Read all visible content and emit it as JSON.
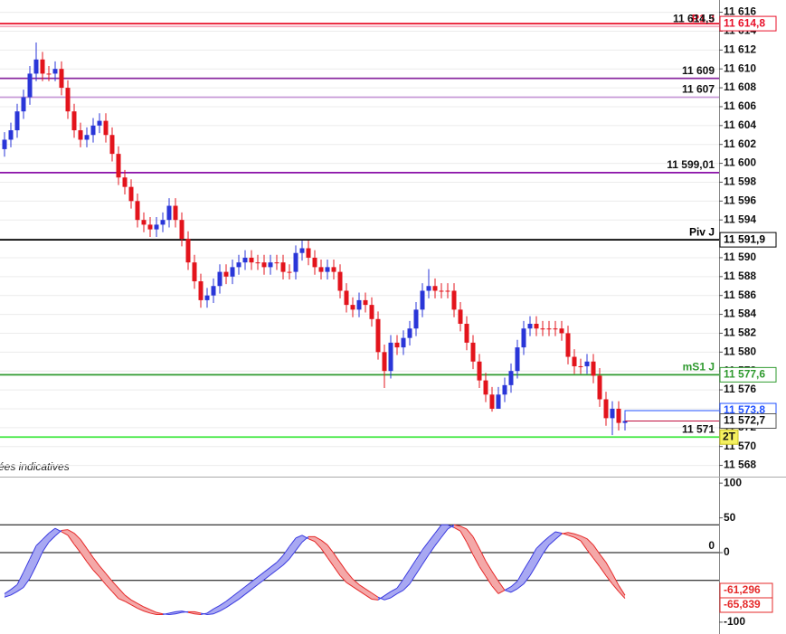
{
  "chart_data": {
    "type": "candlestick",
    "note": "ées indicatives",
    "ylim": [
      11567,
      11617.3
    ],
    "yticks": [
      {
        "value": 11568,
        "label": "11 568"
      },
      {
        "value": 11570,
        "label": "11 570"
      },
      {
        "value": 11572,
        "label": "11 572"
      },
      {
        "value": 11574,
        "label": "11 574"
      },
      {
        "value": 11576,
        "label": "11 576"
      },
      {
        "value": 11578,
        "label": "11 578"
      },
      {
        "value": 11580,
        "label": "11 580"
      },
      {
        "value": 11582,
        "label": "11 582"
      },
      {
        "value": 11584,
        "label": "11 584"
      },
      {
        "value": 11586,
        "label": "11 586"
      },
      {
        "value": 11588,
        "label": "11 588"
      },
      {
        "value": 11590,
        "label": "11 590"
      },
      {
        "value": 11592,
        "label": "11 592"
      },
      {
        "value": 11594,
        "label": "11 594"
      },
      {
        "value": 11596,
        "label": "11 596"
      },
      {
        "value": 11598,
        "label": "11 598"
      },
      {
        "value": 11600,
        "label": "11 600"
      },
      {
        "value": 11602,
        "label": "11 602"
      },
      {
        "value": 11604,
        "label": "11 604"
      },
      {
        "value": 11606,
        "label": "11 606"
      },
      {
        "value": 11608,
        "label": "11 608"
      },
      {
        "value": 11610,
        "label": "11 610"
      },
      {
        "value": 11612,
        "label": "11 612"
      },
      {
        "value": 11614,
        "label": "11 614"
      },
      {
        "value": 11616,
        "label": "11 616"
      }
    ],
    "grid": true,
    "up_color": "#2a36d8",
    "down_color": "#e3141c",
    "open": [
      11601.5,
      11602.5,
      11603.5,
      11605.5,
      11607,
      11609.5,
      11611,
      11609.5,
      11609.5,
      11610,
      11608,
      11605.5,
      11603.5,
      11602.5,
      11603,
      11604,
      11604.5,
      11603,
      11601,
      11598.5,
      11597.5,
      11596,
      11594,
      11593.5,
      11593,
      11593.5,
      11594,
      11595.5,
      11594,
      11592,
      11589.5,
      11587.5,
      11585.5,
      11586,
      11587,
      11588.5,
      11588,
      11589,
      11589.5,
      11590,
      11589.5,
      11589.5,
      11589,
      11589.5,
      11589.5,
      11588.5,
      11588.5,
      11590.5,
      11591,
      11590,
      11589,
      11588.5,
      11589,
      11588.5,
      11586.5,
      11585,
      11584.5,
      11585.5,
      11585,
      11583.5,
      11580,
      11578,
      11581,
      11580.5,
      11581.5,
      11582.5,
      11584.5,
      11586.5,
      11587,
      11586.5,
      11586.5,
      11586.5,
      11584.5,
      11583,
      11581,
      11579,
      11577,
      11575.5,
      11574,
      11575.5,
      11576.5,
      11578,
      11580.5,
      11582.5,
      11583,
      11582.5,
      11582.5,
      11582.5,
      11582.5,
      11582,
      11579.5,
      11578.5,
      11578.5,
      11579,
      11577.5,
      11575,
      11573,
      11574,
      11572.5
    ],
    "high": [
      11603.3,
      11604.3,
      11606.3,
      11607.8,
      11610.3,
      11612.8,
      11611.8,
      11610.3,
      11610.8,
      11610.8,
      11608.8,
      11606.3,
      11604.3,
      11603.8,
      11604.8,
      11605.3,
      11605.3,
      11603.8,
      11601.8,
      11599.3,
      11598.3,
      11596.8,
      11594.8,
      11594.3,
      11594.3,
      11594.8,
      11596.3,
      11596.3,
      11594.8,
      11592.8,
      11590.3,
      11588.3,
      11586.8,
      11587.8,
      11589.3,
      11589.3,
      11589.8,
      11590.3,
      11590.8,
      11590.8,
      11590.3,
      11590.3,
      11590.3,
      11590.3,
      11590.3,
      11589.3,
      11591.3,
      11591.8,
      11591.8,
      11590.8,
      11589.8,
      11589.8,
      11589.8,
      11589.3,
      11587.3,
      11585.8,
      11586.3,
      11586.3,
      11585.8,
      11584.3,
      11580.8,
      11581.8,
      11581.8,
      11582.3,
      11583.3,
      11585.3,
      11587.3,
      11588.8,
      11587.8,
      11587.3,
      11587.3,
      11587.3,
      11585.3,
      11583.8,
      11581.8,
      11579.8,
      11577.8,
      11576.3,
      11576.3,
      11577.3,
      11578.8,
      11581.3,
      11583.3,
      11583.8,
      11583.8,
      11583.3,
      11583.3,
      11583.3,
      11583.3,
      11582.8,
      11580.3,
      11579.3,
      11579.8,
      11579.8,
      11578.3,
      11575.8,
      11574.8,
      11574.8,
      11573.5
    ],
    "low": [
      11600.7,
      11601.7,
      11602.7,
      11604.7,
      11606.2,
      11608.7,
      11608.7,
      11608.7,
      11608.7,
      11607.2,
      11604.7,
      11602.7,
      11601.7,
      11601.7,
      11602.2,
      11603.2,
      11602.2,
      11600.2,
      11597.7,
      11596.7,
      11595.2,
      11593.2,
      11592.7,
      11592.2,
      11592.2,
      11592.7,
      11593.2,
      11593.2,
      11591.2,
      11588.7,
      11586.7,
      11584.7,
      11584.7,
      11585.2,
      11586.2,
      11587.2,
      11587.2,
      11588.2,
      11588.7,
      11588.7,
      11588.7,
      11588.2,
      11588.2,
      11588.7,
      11587.7,
      11587.7,
      11587.7,
      11589.7,
      11589.2,
      11588.2,
      11587.7,
      11587.7,
      11587.7,
      11585.7,
      11584.2,
      11583.7,
      11583.7,
      11584.2,
      11582.7,
      11579.2,
      11576.2,
      11577.2,
      11579.7,
      11579.7,
      11580.7,
      11581.7,
      11583.7,
      11585.7,
      11585.7,
      11585.7,
      11585.7,
      11583.7,
      11582.2,
      11580.2,
      11578.2,
      11576.2,
      11574.7,
      11573.7,
      11574.2,
      11574.7,
      11575.7,
      11577.2,
      11579.7,
      11581.7,
      11581.7,
      11581.7,
      11581.7,
      11581.7,
      11581.2,
      11578.7,
      11577.7,
      11577.7,
      11577.7,
      11576.7,
      11574.2,
      11572.2,
      11571.2,
      11571.7,
      11571.7
    ],
    "close": [
      11602.5,
      11603.5,
      11605.5,
      11607,
      11609.5,
      11611,
      11609.5,
      11609.5,
      11610,
      11608,
      11605.5,
      11603.5,
      11602.5,
      11603,
      11604,
      11604.5,
      11603,
      11601,
      11598.5,
      11597.5,
      11596,
      11594,
      11593.5,
      11593,
      11593.5,
      11594,
      11595.5,
      11594,
      11592,
      11589.5,
      11587.5,
      11585.5,
      11586,
      11587,
      11588.5,
      11588,
      11589,
      11589.5,
      11590,
      11589.5,
      11589.5,
      11589,
      11589.5,
      11589.5,
      11588.5,
      11588.5,
      11590.5,
      11591,
      11590,
      11589,
      11588.5,
      11589,
      11588.5,
      11586.5,
      11585,
      11584.5,
      11585.5,
      11585,
      11583.5,
      11580,
      11578,
      11581,
      11580.5,
      11581.5,
      11582.5,
      11584.5,
      11586.5,
      11587,
      11586.5,
      11586.5,
      11586.5,
      11584.5,
      11583,
      11581,
      11579,
      11577,
      11575.5,
      11574,
      11575.5,
      11576.5,
      11578,
      11580.5,
      11582.5,
      11583,
      11582.5,
      11582.5,
      11582.5,
      11582.5,
      11582,
      11579.5,
      11578.5,
      11578.5,
      11579,
      11577.5,
      11575,
      11573,
      11574,
      11572.5,
      11572.7
    ],
    "last_label": "11 572,7",
    "levels": [
      {
        "value": 11614.8,
        "color": "#e8102a",
        "tag": "11 614,8"
      },
      {
        "value": 11614.5,
        "color": "#f7a8bc",
        "name": "R1 J",
        "name_color": "#e8102a",
        "label": "11 614,5"
      },
      {
        "value": 11609,
        "color": "#8a2aa0",
        "label": "11 609"
      },
      {
        "value": 11607,
        "color": "#c89ad8",
        "label": "11 607"
      },
      {
        "value": 11599.01,
        "color": "#8a10a8",
        "label": "11 599,01"
      },
      {
        "value": 11591.9,
        "color": "#000000",
        "name": "Piv J",
        "tag": "11 591,9"
      },
      {
        "value": 11577.6,
        "color": "#2f9a2f",
        "name": "mS1 J",
        "tag": "11 577,6"
      },
      {
        "value": 11573.8,
        "color": "#2050ff",
        "tag": "11 573,8",
        "short": true
      },
      {
        "value": 11571,
        "color": "#3ee83e",
        "label": "11 571",
        "flag": "2T"
      }
    ],
    "oscillator": {
      "ylim": [
        -117,
        108
      ],
      "yticks": [
        100,
        50,
        0,
        -100
      ],
      "levels": [
        40,
        0,
        -40
      ],
      "level_labels": [
        null,
        "0",
        null
      ],
      "up_color": "#3a3ae0",
      "up_fill": "#a8a8f2",
      "down_color": "#e52a2a",
      "down_fill": "#f4a8a8",
      "series": [
        {
          "values": [
            -59,
            -53,
            -46,
            -28,
            -9,
            10,
            19,
            28,
            35,
            30,
            25,
            12,
            0,
            -13,
            -25,
            -35,
            -46,
            -56,
            -66,
            -70,
            -75,
            -80,
            -84,
            -87,
            -89,
            -89,
            -87,
            -85,
            -84,
            -86,
            -88,
            -89,
            -87,
            -81,
            -76,
            -70,
            -63,
            -56,
            -49,
            -42,
            -35,
            -28,
            -21,
            -14,
            -4,
            9,
            21,
            25,
            20,
            16,
            6,
            -7,
            -20,
            -33,
            -43,
            -49,
            -55,
            -61,
            -67,
            -68,
            -62,
            -56,
            -51,
            -38,
            -24,
            -10,
            4,
            16,
            28,
            40,
            40,
            36,
            31,
            15,
            -3,
            -20,
            -34,
            -48,
            -59,
            -54,
            -49,
            -41,
            -25,
            -10,
            6,
            15,
            23,
            30,
            28,
            25,
            22,
            17,
            4,
            -8,
            -20,
            -33,
            -45,
            -56,
            -65.839
          ],
          "last_label": "-65,839"
        },
        {
          "values": [
            -64,
            -61,
            -56,
            -50,
            -37,
            -19,
            1,
            15,
            24,
            32,
            33,
            28,
            19,
            6,
            -7,
            -19,
            -30,
            -41,
            -51,
            -61,
            -68,
            -73,
            -78,
            -82,
            -86,
            -88,
            -89,
            -88,
            -86,
            -85,
            -85,
            -87,
            -89,
            -88,
            -84,
            -79,
            -73,
            -67,
            -60,
            -53,
            -46,
            -39,
            -32,
            -25,
            -18,
            -9,
            3,
            15,
            23,
            23,
            18,
            11,
            -1,
            -14,
            -27,
            -38,
            -46,
            -52,
            -58,
            -64,
            -68,
            -65,
            -59,
            -54,
            -45,
            -31,
            -17,
            -3,
            10,
            22,
            34,
            40,
            38,
            34,
            23,
            6,
            -12,
            -27,
            -41,
            -54,
            -57,
            -52,
            -45,
            -33,
            -18,
            -2,
            11,
            19,
            27,
            29,
            27,
            24,
            20,
            11,
            -2,
            -14,
            -30,
            -47,
            -61.296
          ],
          "last_label": "-61,296"
        }
      ]
    }
  }
}
